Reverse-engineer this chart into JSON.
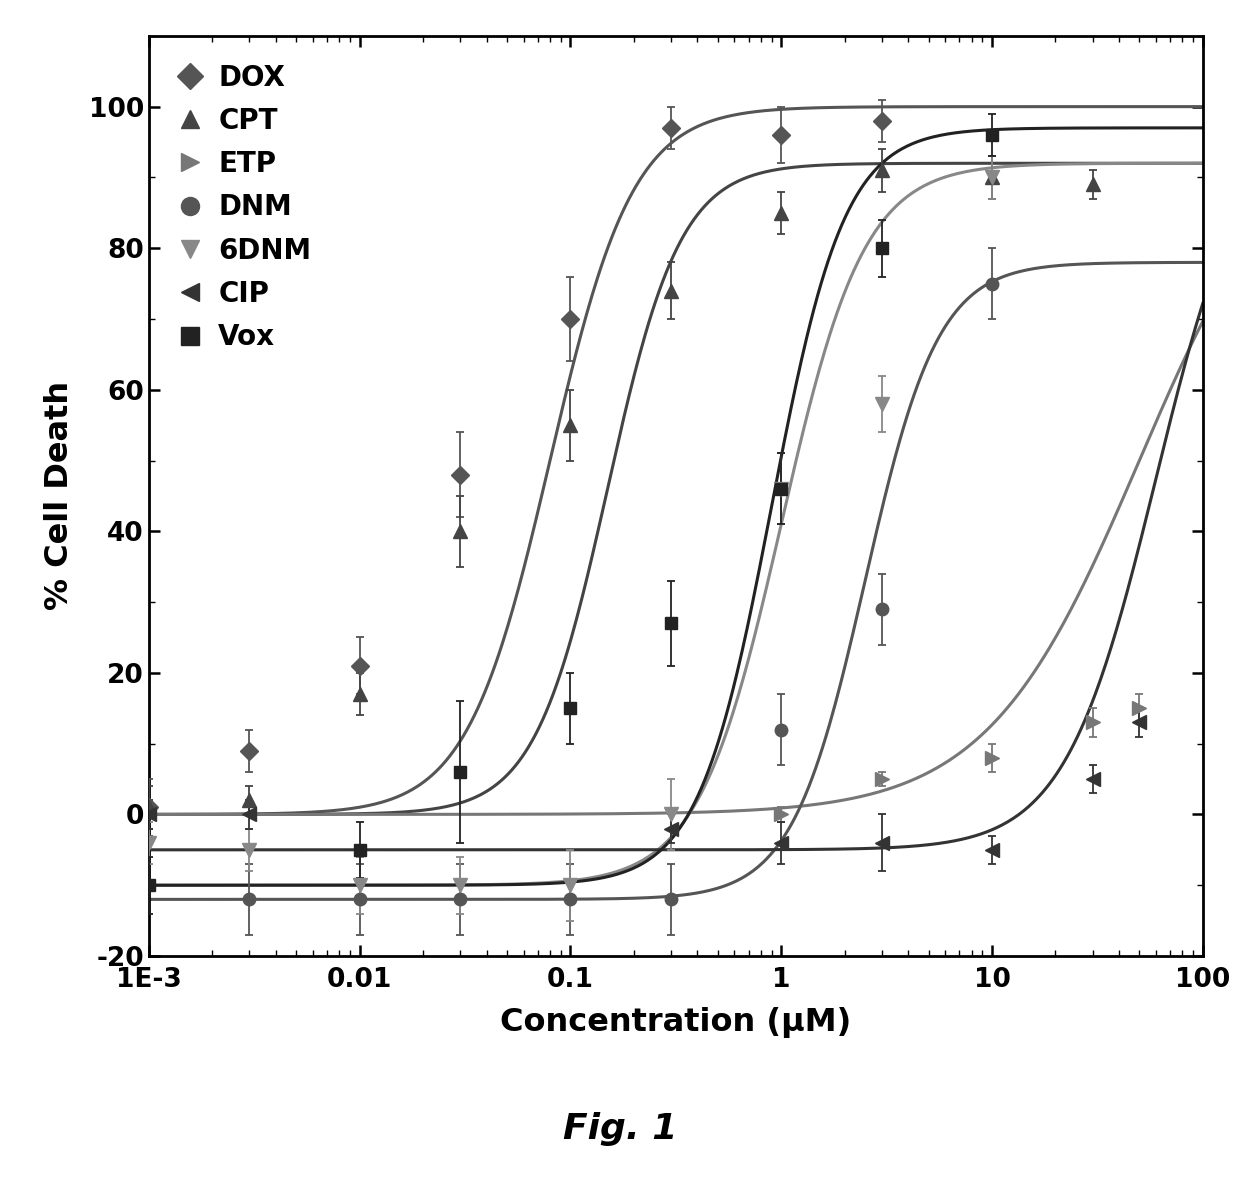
{
  "title": "",
  "xlabel": "Concentration (μM)",
  "ylabel": "% Cell Death",
  "fig_label": "Fig. 1",
  "xlim": [
    0.001,
    100
  ],
  "ylim": [
    -20,
    110
  ],
  "series": [
    {
      "name": "DOX",
      "marker": "D",
      "color": "#555555",
      "markersize": 9,
      "ec50": 0.08,
      "hill": 2.2,
      "top": 100,
      "bottom": 0,
      "data_x": [
        0.001,
        0.003,
        0.01,
        0.03,
        0.1,
        0.3,
        1.0,
        3.0
      ],
      "data_y": [
        1,
        9,
        21,
        48,
        70,
        97,
        96,
        98
      ],
      "data_yerr": [
        4,
        3,
        4,
        6,
        6,
        3,
        4,
        3
      ]
    },
    {
      "name": "CPT",
      "marker": "^",
      "color": "#444444",
      "markersize": 10,
      "ec50": 0.15,
      "hill": 2.5,
      "top": 92,
      "bottom": 0,
      "data_x": [
        0.001,
        0.003,
        0.01,
        0.03,
        0.1,
        0.3,
        1.0,
        3.0,
        10.0,
        30.0
      ],
      "data_y": [
        1,
        2,
        17,
        40,
        55,
        74,
        85,
        91,
        90,
        89
      ],
      "data_yerr": [
        3,
        2,
        3,
        5,
        5,
        4,
        3,
        3,
        3,
        2
      ]
    },
    {
      "name": "ETP",
      "marker": ">",
      "color": "#777777",
      "markersize": 10,
      "ec50": 50.0,
      "hill": 1.2,
      "top": 100,
      "bottom": 0,
      "data_x": [
        1.0,
        3.0,
        10.0,
        30.0,
        50.0
      ],
      "data_y": [
        0,
        5,
        8,
        13,
        15
      ],
      "data_yerr": [
        1,
        1,
        2,
        2,
        2
      ]
    },
    {
      "name": "DNM",
      "marker": "o",
      "color": "#555555",
      "markersize": 9,
      "ec50": 2.5,
      "hill": 2.5,
      "top": 78,
      "bottom": -12,
      "data_x": [
        0.003,
        0.01,
        0.03,
        0.1,
        0.3,
        1.0,
        3.0,
        10.0
      ],
      "data_y": [
        -12,
        -12,
        -12,
        -12,
        -12,
        12,
        29,
        75
      ],
      "data_yerr": [
        5,
        5,
        5,
        5,
        5,
        5,
        5,
        5
      ]
    },
    {
      "name": "6DNM",
      "marker": "v",
      "color": "#888888",
      "markersize": 10,
      "ec50": 1.0,
      "hill": 2.2,
      "top": 92,
      "bottom": -10,
      "data_x": [
        0.001,
        0.003,
        0.01,
        0.03,
        0.1,
        0.3,
        1.0,
        3.0,
        10.0
      ],
      "data_y": [
        -4,
        -5,
        -10,
        -10,
        -10,
        0,
        46,
        58,
        90
      ],
      "data_yerr": [
        3,
        3,
        4,
        4,
        5,
        5,
        5,
        4,
        3
      ]
    },
    {
      "name": "CIP",
      "marker": "<",
      "color": "#333333",
      "markersize": 10,
      "ec50": 60.0,
      "hill": 2.0,
      "top": 100,
      "bottom": -5,
      "data_x": [
        0.001,
        0.003,
        0.3,
        1.0,
        3.0,
        10.0,
        30.0,
        50.0
      ],
      "data_y": [
        0,
        0,
        -2,
        -4,
        -4,
        -5,
        5,
        13
      ],
      "data_yerr": [
        2,
        2,
        2,
        3,
        4,
        2,
        2,
        2
      ]
    },
    {
      "name": "Vox",
      "marker": "s",
      "color": "#222222",
      "markersize": 9,
      "ec50": 0.9,
      "hill": 2.5,
      "top": 97,
      "bottom": -10,
      "data_x": [
        0.001,
        0.01,
        0.03,
        0.1,
        0.3,
        1.0,
        3.0,
        10.0
      ],
      "data_y": [
        -10,
        -5,
        6,
        15,
        27,
        46,
        80,
        96
      ],
      "data_yerr": [
        4,
        4,
        10,
        5,
        6,
        5,
        4,
        3
      ]
    }
  ]
}
